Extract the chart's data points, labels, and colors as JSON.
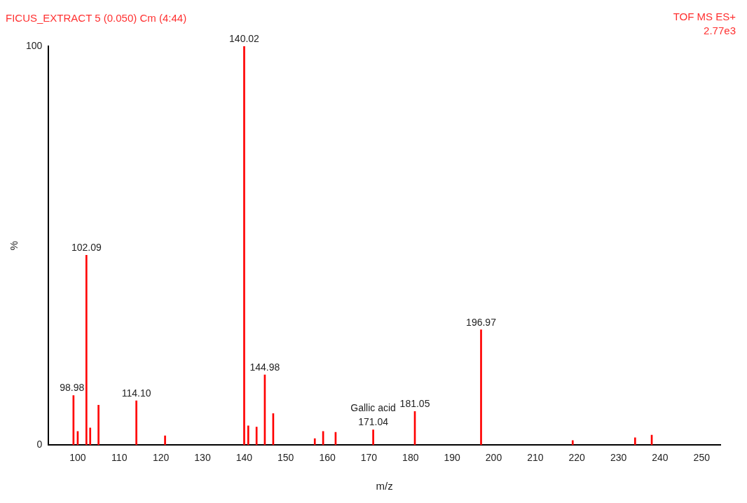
{
  "chart_data": {
    "type": "bar",
    "title": "FICUS_EXTRACT 5 (0.050) Cm (4:44)",
    "xlabel": "m/z",
    "ylabel": "%",
    "x": [
      98.98,
      100,
      102.09,
      103,
      105,
      114.1,
      121,
      140.02,
      141,
      143,
      144.98,
      147,
      157,
      159,
      162,
      171.04,
      181.05,
      196.97,
      219,
      234,
      238
    ],
    "values": [
      12.4,
      3.4,
      47.6,
      4.3,
      10,
      11.1,
      2.3,
      100,
      4.8,
      4.5,
      17.6,
      7.9,
      1.6,
      3.4,
      3.2,
      3.8,
      8.4,
      28.9,
      1.1,
      1.8,
      2.5
    ],
    "color": "#ff0000",
    "xlim": [
      93,
      254.5
    ],
    "xticks": [
      100,
      110,
      120,
      130,
      140,
      150,
      160,
      170,
      180,
      190,
      200,
      210,
      220,
      230,
      240,
      250
    ],
    "ylim": [
      0,
      100
    ],
    "yticks": [
      0,
      100
    ],
    "grid": false,
    "legend": false,
    "annotations": [
      {
        "text": "98.98",
        "x": 98.98,
        "y": 12.4
      },
      {
        "text": "102.09",
        "x": 102.09,
        "y": 47.6
      },
      {
        "text": "114.10",
        "x": 114.1,
        "y": 11.1
      },
      {
        "text": "140.02",
        "x": 140.02,
        "y": 100
      },
      {
        "text": "144.98",
        "x": 144.98,
        "y": 17.6
      },
      {
        "text": "171.04",
        "x": 171.04,
        "y": 3.8
      },
      {
        "text": "Gallic acid",
        "x": 171.04,
        "y": 3.8
      },
      {
        "text": "181.05",
        "x": 181.05,
        "y": 8.4
      },
      {
        "text": "196.97",
        "x": 196.97,
        "y": 28.9
      },
      "TOF MS ES+",
      "2.77e3"
    ]
  }
}
